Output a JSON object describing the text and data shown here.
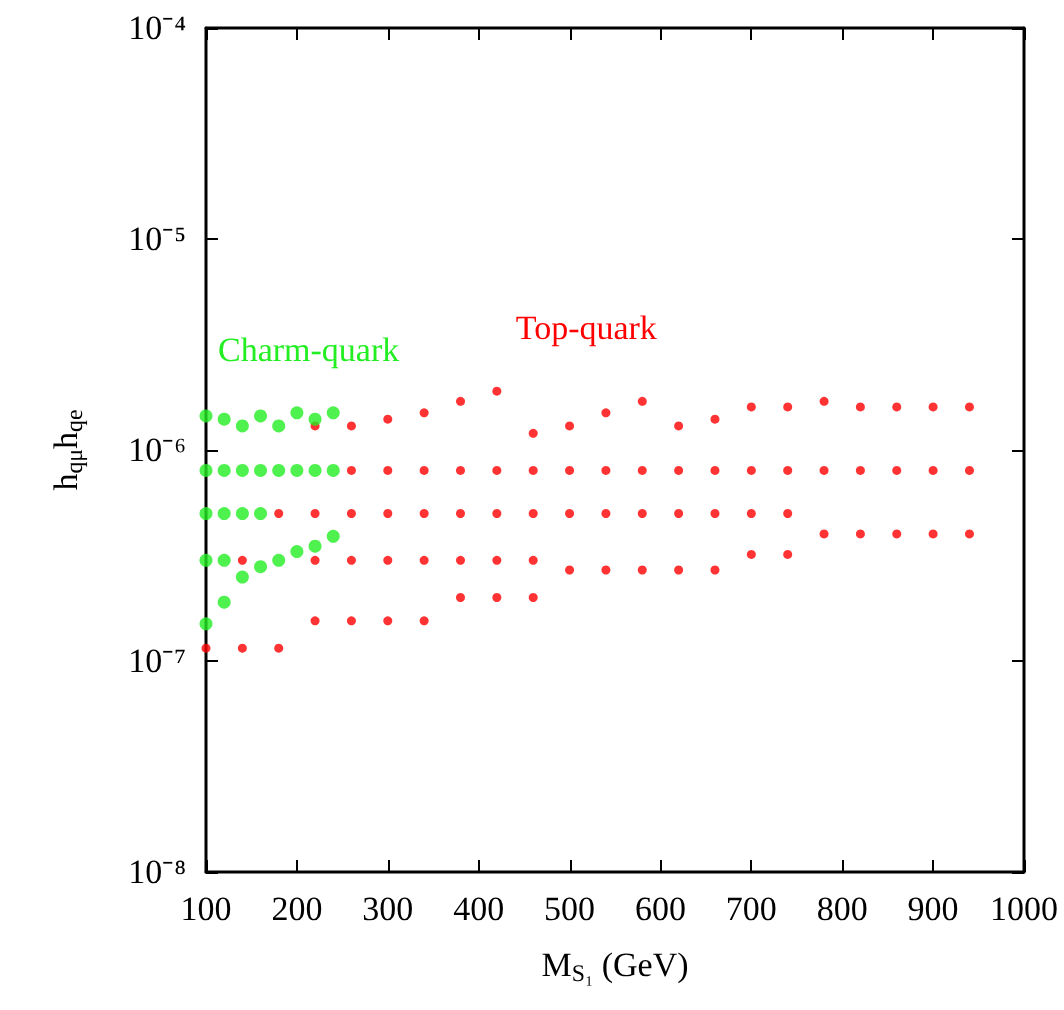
{
  "chart_data": {
    "type": "scatter",
    "xlabel": "M$_{S₁}$ (GeV)",
    "ylabel": "h$_{qμ}$h$_{qe}$",
    "log": "y",
    "grid": false,
    "legend": false,
    "marker": "circle",
    "xlim": [
      100,
      1000
    ],
    "xticks": [
      100,
      200,
      300,
      400,
      500,
      600,
      700,
      800,
      900,
      1000
    ],
    "ylim": [
      1e-08,
      0.0001
    ],
    "yticks": [
      {
        "value": 1e-08,
        "label": "10⁻⁸"
      },
      {
        "value": 1e-07,
        "label": "10⁻⁷"
      },
      {
        "value": 1e-06,
        "label": "10⁻⁶"
      },
      {
        "value": 1e-05,
        "label": "10⁻⁵"
      },
      {
        "value": 0.0001,
        "label": "10⁻⁴"
      }
    ],
    "series": [
      {
        "name": "Top-quark",
        "color": "#ff0000",
        "x": [
          100,
          140,
          140,
          180,
          180,
          220,
          220,
          220,
          220,
          260,
          260,
          260,
          260,
          260,
          300,
          300,
          300,
          300,
          300,
          340,
          340,
          340,
          340,
          340,
          380,
          380,
          380,
          380,
          380,
          420,
          420,
          420,
          420,
          420,
          460,
          460,
          460,
          460,
          460,
          500,
          500,
          500,
          500,
          540,
          540,
          540,
          540,
          580,
          580,
          580,
          580,
          620,
          620,
          620,
          620,
          660,
          660,
          660,
          660,
          700,
          700,
          700,
          700,
          740,
          740,
          740,
          740,
          780,
          780,
          780,
          820,
          820,
          820,
          860,
          860,
          860,
          900,
          900,
          900,
          940,
          940,
          940
        ],
        "values": [
          1.15e-07,
          1.15e-07,
          3e-07,
          1.15e-07,
          5e-07,
          1.55e-07,
          3e-07,
          5e-07,
          1.3e-06,
          1.55e-07,
          3e-07,
          5e-07,
          8e-07,
          1.3e-06,
          1.55e-07,
          3e-07,
          5e-07,
          8e-07,
          1.4e-06,
          1.55e-07,
          3e-07,
          5e-07,
          8e-07,
          1.5e-06,
          2e-07,
          3e-07,
          5e-07,
          8e-07,
          1.7e-06,
          2e-07,
          3e-07,
          5e-07,
          8e-07,
          1.9e-06,
          2e-07,
          3e-07,
          5e-07,
          8e-07,
          1.2e-06,
          2.7e-07,
          5e-07,
          8e-07,
          1.3e-06,
          2.7e-07,
          5e-07,
          8e-07,
          1.5e-06,
          2.7e-07,
          5e-07,
          8e-07,
          1.7e-06,
          2.7e-07,
          5e-07,
          8e-07,
          1.3e-06,
          2.7e-07,
          5e-07,
          8e-07,
          1.4e-06,
          3.2e-07,
          5e-07,
          8e-07,
          1.6e-06,
          3.2e-07,
          5e-07,
          8e-07,
          1.6e-06,
          4e-07,
          8e-07,
          1.7e-06,
          4e-07,
          8e-07,
          1.6e-06,
          4e-07,
          8e-07,
          1.6e-06,
          4e-07,
          8e-07,
          1.6e-06,
          4e-07,
          8e-07,
          1.6e-06
        ]
      },
      {
        "name": "Charm-quark",
        "color": "#22ee22",
        "x": [
          100,
          100,
          100,
          100,
          100,
          120,
          120,
          120,
          120,
          120,
          140,
          140,
          140,
          140,
          160,
          160,
          160,
          160,
          180,
          180,
          180,
          200,
          200,
          200,
          220,
          220,
          220,
          240,
          240,
          240
        ],
        "values": [
          1.5e-07,
          3e-07,
          5e-07,
          8e-07,
          1.45e-06,
          1.9e-07,
          3e-07,
          5e-07,
          8e-07,
          1.4e-06,
          2.5e-07,
          5e-07,
          8e-07,
          1.3e-06,
          2.8e-07,
          5e-07,
          8e-07,
          1.45e-06,
          3e-07,
          8e-07,
          1.3e-06,
          3.3e-07,
          8e-07,
          1.5e-06,
          3.5e-07,
          8e-07,
          1.4e-06,
          3.9e-07,
          8e-07,
          1.5e-06
        ]
      }
    ]
  }
}
